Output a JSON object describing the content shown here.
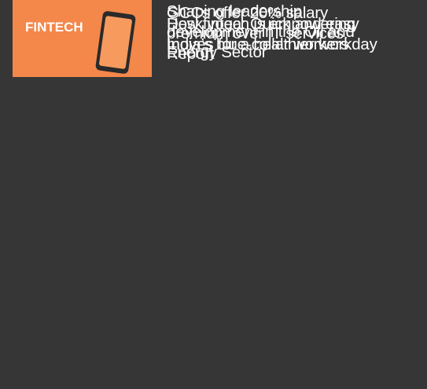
{
  "articles": [
    {
      "headline_lines": [
        "GCCs offer 20% salary",
        "premium over IT services:",
        "Report"
      ],
      "thumbnail_text": "₹"
    },
    {
      "headline_lines": [
        "Shaping leadership",
        "development in the Oil and",
        "Energy Sector"
      ]
    },
    {
      "headline_lines": [
        "Desk yoga: Quick and easy",
        "moves for a healthier workday"
      ]
    },
    {
      "headline_lines": [
        "How fintech is empowering",
        "India’s blue-collar workers"
      ],
      "thumbnail_text": "FINTECH"
    }
  ]
}
